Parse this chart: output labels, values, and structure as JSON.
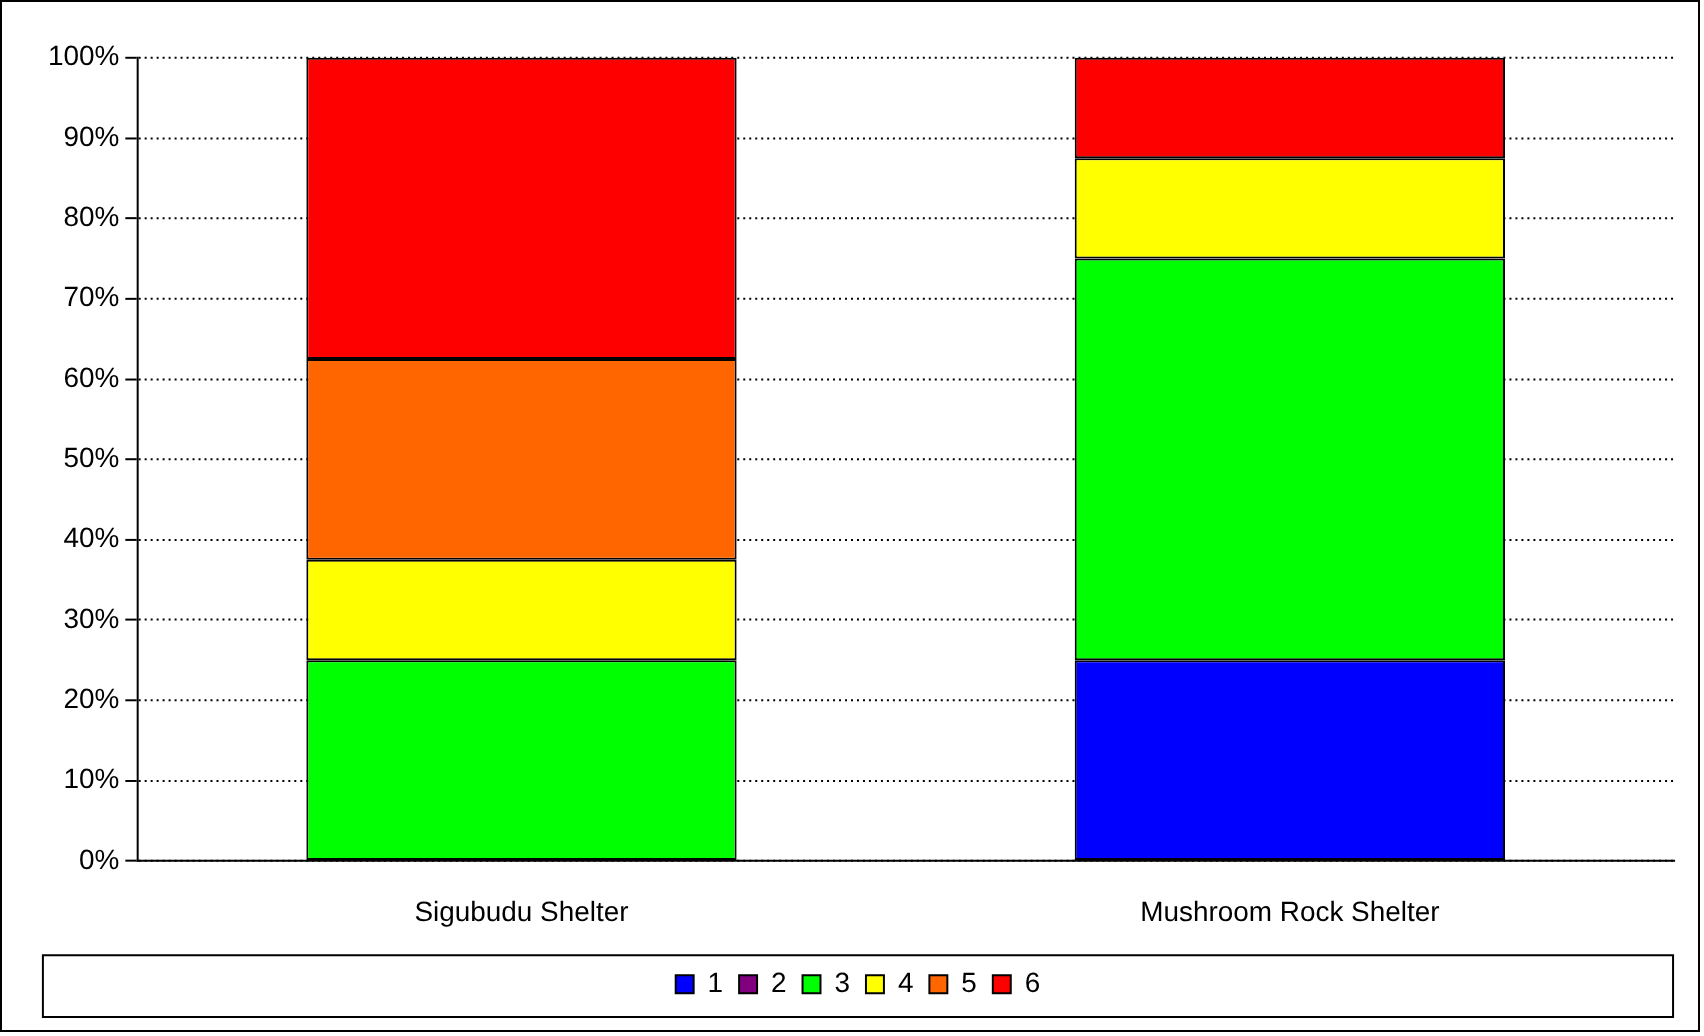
{
  "chart_data": {
    "type": "bar",
    "stacked": true,
    "categories": [
      "Sigubudu Shelter",
      "Mushroom Rock Shelter"
    ],
    "series": [
      {
        "name": "1",
        "color": "#0000ff",
        "values": [
          0,
          25
        ]
      },
      {
        "name": "2",
        "color": "#800080",
        "values": [
          0,
          0
        ]
      },
      {
        "name": "3",
        "color": "#00ff00",
        "values": [
          25,
          50
        ]
      },
      {
        "name": "4",
        "color": "#ffff00",
        "values": [
          12.5,
          12.5
        ]
      },
      {
        "name": "5",
        "color": "#ff6600",
        "values": [
          25,
          0
        ]
      },
      {
        "name": "6",
        "color": "#ff0000",
        "values": [
          37.5,
          12.5
        ]
      }
    ],
    "ylim": [
      0,
      100
    ],
    "yticks": [
      {
        "value": 0,
        "label": "0%"
      },
      {
        "value": 10,
        "label": "10%"
      },
      {
        "value": 20,
        "label": "20%"
      },
      {
        "value": 30,
        "label": "30%"
      },
      {
        "value": 40,
        "label": "40%"
      },
      {
        "value": 50,
        "label": "50%"
      },
      {
        "value": 60,
        "label": "60%"
      },
      {
        "value": 70,
        "label": "70%"
      },
      {
        "value": 80,
        "label": "80%"
      },
      {
        "value": 90,
        "label": "90%"
      },
      {
        "value": 100,
        "label": "100%"
      }
    ],
    "grid": "y",
    "legend": "bottom"
  }
}
